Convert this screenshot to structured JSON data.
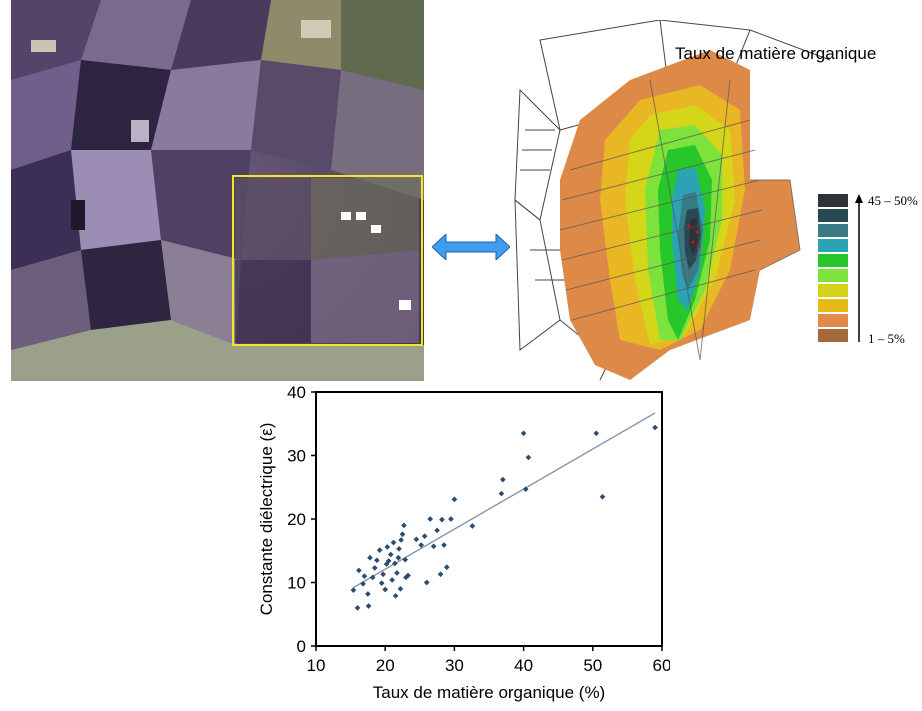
{
  "map": {
    "title": "Taux de matière organique",
    "legend_top": "45 – 50%",
    "legend_bottom": "1 – 5%",
    "legend_colors": [
      "#2f3335",
      "#274a52",
      "#3a7a86",
      "#2aa4b4",
      "#27c62b",
      "#7ee23d",
      "#d4d21a",
      "#e7ba1a",
      "#e28a4a",
      "#a56a3c"
    ]
  },
  "satellite": {
    "box_color": "#f3e820"
  },
  "arrow": {
    "color": "#3f9df0"
  },
  "chart_data": {
    "type": "scatter",
    "xlabel": "Taux de matière organique  (%)",
    "ylabel": "Constante diélectrique  (ε)",
    "xlim": [
      10,
      60
    ],
    "ylim": [
      0,
      40
    ],
    "xticks": [
      "10",
      "20",
      "30",
      "40",
      "50",
      "60"
    ],
    "yticks": [
      "0",
      "10",
      "20",
      "30",
      "40"
    ],
    "points": [
      [
        15.4,
        8.8
      ],
      [
        16.0,
        6.0
      ],
      [
        16.2,
        11.9
      ],
      [
        16.8,
        9.8
      ],
      [
        17.0,
        11.0
      ],
      [
        17.5,
        8.2
      ],
      [
        17.6,
        6.3
      ],
      [
        17.8,
        13.9
      ],
      [
        18.2,
        10.8
      ],
      [
        18.5,
        12.3
      ],
      [
        18.8,
        13.5
      ],
      [
        19.2,
        15.1
      ],
      [
        19.5,
        9.9
      ],
      [
        19.7,
        11.3
      ],
      [
        20.0,
        8.9
      ],
      [
        20.2,
        12.9
      ],
      [
        20.3,
        15.6
      ],
      [
        20.5,
        13.4
      ],
      [
        20.8,
        14.4
      ],
      [
        21.0,
        10.4
      ],
      [
        21.2,
        16.3
      ],
      [
        21.4,
        13.0
      ],
      [
        21.5,
        7.9
      ],
      [
        21.7,
        11.5
      ],
      [
        21.9,
        13.9
      ],
      [
        22.0,
        15.3
      ],
      [
        22.2,
        9.0
      ],
      [
        22.3,
        16.7
      ],
      [
        22.5,
        17.6
      ],
      [
        22.7,
        19.0
      ],
      [
        22.9,
        13.6
      ],
      [
        23.0,
        10.8
      ],
      [
        23.3,
        11.1
      ],
      [
        24.5,
        16.8
      ],
      [
        25.2,
        15.9
      ],
      [
        25.7,
        17.3
      ],
      [
        26.0,
        10.0
      ],
      [
        26.5,
        20.0
      ],
      [
        27.0,
        15.7
      ],
      [
        27.5,
        18.2
      ],
      [
        28.0,
        11.3
      ],
      [
        28.2,
        19.9
      ],
      [
        28.5,
        15.9
      ],
      [
        28.9,
        12.4
      ],
      [
        29.5,
        20.0
      ],
      [
        30.0,
        23.1
      ],
      [
        32.6,
        18.9
      ],
      [
        36.8,
        24.0
      ],
      [
        37.0,
        26.2
      ],
      [
        40.0,
        33.5
      ],
      [
        40.3,
        24.7
      ],
      [
        40.7,
        29.7
      ],
      [
        50.5,
        33.5
      ],
      [
        51.4,
        23.5
      ],
      [
        59.0,
        34.4
      ]
    ],
    "trendline": [
      [
        15.4,
        9.2
      ],
      [
        59.0,
        36.7
      ]
    ],
    "point_color": "#2a4d70",
    "line_color": "#7d90a6"
  }
}
